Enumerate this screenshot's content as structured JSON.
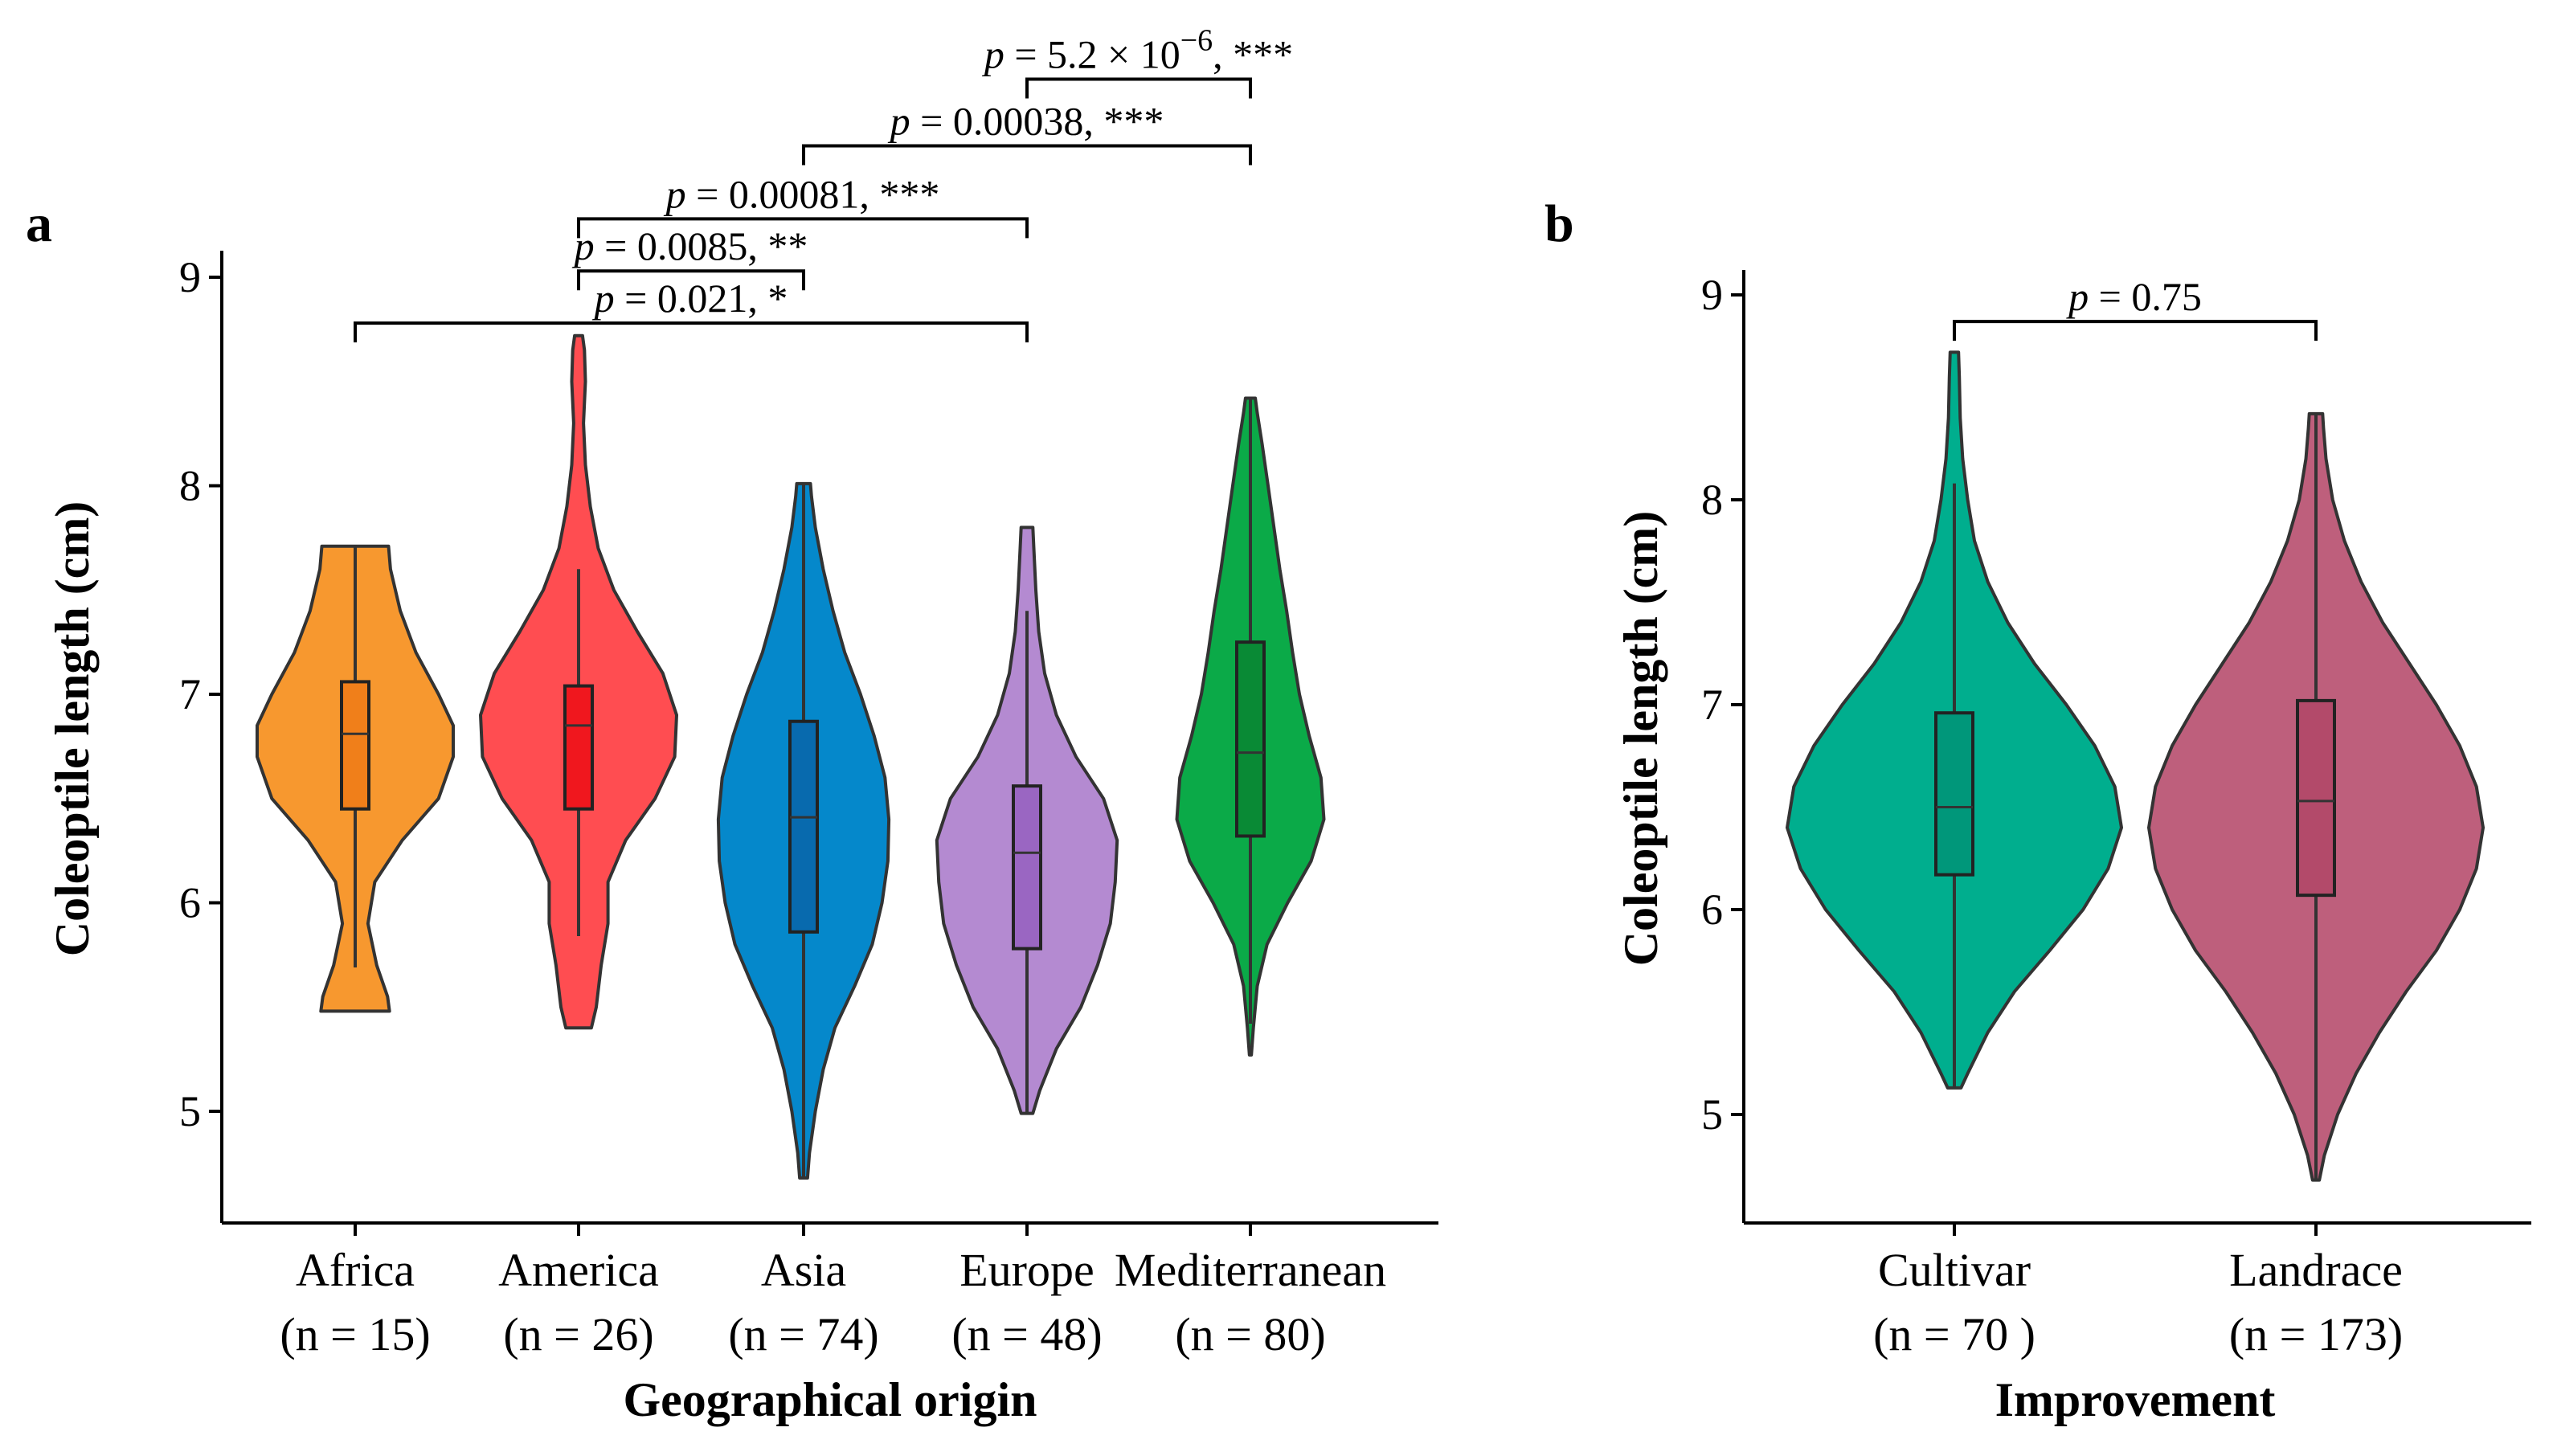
{
  "chart_data": [
    {
      "panel_label": "a",
      "type": "violin",
      "xlabel": "Geographical origin",
      "ylabel": "Coleoptile length (cm)",
      "ylim": [
        4.5,
        9.1
      ],
      "yticks": [
        5,
        6,
        7,
        8,
        9
      ],
      "groups": [
        {
          "name": "Africa",
          "n_label": "(n = 15)",
          "color": "#F7982F",
          "box_color": "#F07F1A",
          "min": 5.48,
          "max": 7.71,
          "median": 6.81,
          "q1": 6.45,
          "q3": 7.06,
          "wlow": 5.69,
          "whigh": 7.71,
          "density": [
            [
              5.48,
              0.35
            ],
            [
              5.55,
              0.33
            ],
            [
              5.7,
              0.22
            ],
            [
              5.9,
              0.13
            ],
            [
              6.1,
              0.2
            ],
            [
              6.3,
              0.48
            ],
            [
              6.5,
              0.85
            ],
            [
              6.7,
              1.0
            ],
            [
              6.85,
              1.0
            ],
            [
              7.0,
              0.85
            ],
            [
              7.2,
              0.62
            ],
            [
              7.4,
              0.46
            ],
            [
              7.6,
              0.36
            ],
            [
              7.71,
              0.34
            ]
          ]
        },
        {
          "name": "America",
          "n_label": "(n = 26)",
          "color": "#FF4D51",
          "box_color": "#F0171E",
          "min": 5.4,
          "max": 8.72,
          "median": 6.85,
          "q1": 6.45,
          "q3": 7.04,
          "wlow": 5.84,
          "whigh": 7.6,
          "density": [
            [
              5.4,
              0.13
            ],
            [
              5.5,
              0.18
            ],
            [
              5.7,
              0.23
            ],
            [
              5.9,
              0.3
            ],
            [
              6.1,
              0.3
            ],
            [
              6.3,
              0.48
            ],
            [
              6.5,
              0.78
            ],
            [
              6.7,
              0.98
            ],
            [
              6.9,
              1.0
            ],
            [
              7.1,
              0.86
            ],
            [
              7.3,
              0.6
            ],
            [
              7.5,
              0.36
            ],
            [
              7.7,
              0.2
            ],
            [
              7.9,
              0.12
            ],
            [
              8.1,
              0.07
            ],
            [
              8.3,
              0.05
            ],
            [
              8.5,
              0.07
            ],
            [
              8.65,
              0.06
            ],
            [
              8.72,
              0.04
            ]
          ]
        },
        {
          "name": "Asia",
          "n_label": "(n = 74)",
          "color": "#0588CB",
          "box_color": "#086AAE",
          "min": 4.68,
          "max": 8.01,
          "median": 6.41,
          "q1": 5.86,
          "q3": 6.87,
          "wlow": 4.68,
          "whigh": 8.01,
          "density": [
            [
              4.68,
              0.04
            ],
            [
              4.8,
              0.06
            ],
            [
              5.0,
              0.12
            ],
            [
              5.2,
              0.2
            ],
            [
              5.4,
              0.32
            ],
            [
              5.6,
              0.52
            ],
            [
              5.8,
              0.7
            ],
            [
              6.0,
              0.8
            ],
            [
              6.2,
              0.86
            ],
            [
              6.4,
              0.87
            ],
            [
              6.6,
              0.83
            ],
            [
              6.8,
              0.72
            ],
            [
              7.0,
              0.58
            ],
            [
              7.2,
              0.42
            ],
            [
              7.4,
              0.3
            ],
            [
              7.6,
              0.2
            ],
            [
              7.8,
              0.12
            ],
            [
              7.95,
              0.08
            ],
            [
              8.01,
              0.07
            ]
          ]
        },
        {
          "name": "Europe",
          "n_label": "(n = 48)",
          "color": "#B48AD1",
          "box_color": "#9A66C2",
          "min": 4.99,
          "max": 7.8,
          "median": 6.24,
          "q1": 5.78,
          "q3": 6.56,
          "wlow": 4.99,
          "whigh": 7.4,
          "density": [
            [
              4.99,
              0.06
            ],
            [
              5.1,
              0.13
            ],
            [
              5.3,
              0.3
            ],
            [
              5.5,
              0.55
            ],
            [
              5.7,
              0.72
            ],
            [
              5.9,
              0.85
            ],
            [
              6.1,
              0.9
            ],
            [
              6.3,
              0.92
            ],
            [
              6.5,
              0.78
            ],
            [
              6.7,
              0.5
            ],
            [
              6.9,
              0.3
            ],
            [
              7.1,
              0.18
            ],
            [
              7.3,
              0.12
            ],
            [
              7.5,
              0.09
            ],
            [
              7.7,
              0.07
            ],
            [
              7.8,
              0.06
            ]
          ]
        },
        {
          "name": "Mediterranean",
          "n_label": "(n = 80)",
          "color": "#0BAA48",
          "box_color": "#098A35",
          "min": 5.27,
          "max": 8.42,
          "median": 6.72,
          "q1": 6.32,
          "q3": 7.25,
          "wlow": 5.42,
          "whigh": 8.42,
          "density": [
            [
              5.27,
              0.01
            ],
            [
              5.4,
              0.03
            ],
            [
              5.6,
              0.07
            ],
            [
              5.8,
              0.17
            ],
            [
              6.0,
              0.38
            ],
            [
              6.2,
              0.62
            ],
            [
              6.4,
              0.75
            ],
            [
              6.6,
              0.72
            ],
            [
              6.8,
              0.6
            ],
            [
              7.0,
              0.5
            ],
            [
              7.2,
              0.43
            ],
            [
              7.4,
              0.37
            ],
            [
              7.6,
              0.3
            ],
            [
              7.8,
              0.24
            ],
            [
              8.0,
              0.18
            ],
            [
              8.2,
              0.12
            ],
            [
              8.35,
              0.07
            ],
            [
              8.42,
              0.05
            ]
          ]
        }
      ],
      "comparisons": [
        {
          "g1": "Africa",
          "g2": "Europe",
          "y": 8.78,
          "label_prefix": "p",
          "label_rest": " = 0.021, *"
        },
        {
          "g1": "America",
          "g2": "Asia",
          "y": 9.03,
          "label_prefix": "p",
          "label_rest": " = 0.0085, **"
        },
        {
          "g1": "America",
          "g2": "Europe",
          "y": 9.28,
          "label_prefix": "p",
          "label_rest": " = 0.00081, ***"
        },
        {
          "g1": "Asia",
          "g2": "Mediterranean",
          "y": 9.63,
          "label_prefix": "p",
          "label_rest": " = 0.00038, ***"
        },
        {
          "g1": "Europe",
          "g2": "Mediterranean",
          "y": 9.95,
          "label_prefix": "p",
          "label_rest": " = 5.2 × 10",
          "label_sup": "−6",
          "label_tail": ", ***"
        }
      ]
    },
    {
      "panel_label": "b",
      "type": "violin",
      "xlabel": "Improvement",
      "ylabel": "Coleoptile length (cm)",
      "ylim": [
        4.5,
        9.1
      ],
      "yticks": [
        5,
        6,
        7,
        8,
        9
      ],
      "groups": [
        {
          "name": "Cultivar",
          "n_label": "(n = 70 )",
          "color": "#00AE8E",
          "box_color": "#00977A",
          "min": 5.13,
          "max": 8.72,
          "median": 6.5,
          "q1": 6.17,
          "q3": 6.96,
          "wlow": 5.13,
          "whigh": 8.08,
          "density": [
            [
              5.13,
              0.04
            ],
            [
              5.2,
              0.08
            ],
            [
              5.4,
              0.2
            ],
            [
              5.6,
              0.36
            ],
            [
              5.8,
              0.57
            ],
            [
              6.0,
              0.77
            ],
            [
              6.2,
              0.92
            ],
            [
              6.4,
              1.0
            ],
            [
              6.6,
              0.96
            ],
            [
              6.8,
              0.84
            ],
            [
              7.0,
              0.67
            ],
            [
              7.2,
              0.48
            ],
            [
              7.4,
              0.32
            ],
            [
              7.6,
              0.2
            ],
            [
              7.8,
              0.12
            ],
            [
              8.0,
              0.08
            ],
            [
              8.2,
              0.05
            ],
            [
              8.4,
              0.035
            ],
            [
              8.6,
              0.03
            ],
            [
              8.72,
              0.025
            ]
          ]
        },
        {
          "name": "Landrace",
          "n_label": "(n = 173)",
          "color": "#BE5F7C",
          "box_color": "#B34A6A",
          "min": 4.68,
          "max": 8.42,
          "median": 6.53,
          "q1": 6.07,
          "q3": 7.02,
          "wlow": 4.68,
          "whigh": 8.42,
          "density": [
            [
              4.68,
              0.02
            ],
            [
              4.8,
              0.05
            ],
            [
              5.0,
              0.13
            ],
            [
              5.2,
              0.24
            ],
            [
              5.4,
              0.38
            ],
            [
              5.6,
              0.54
            ],
            [
              5.8,
              0.72
            ],
            [
              6.0,
              0.86
            ],
            [
              6.2,
              0.96
            ],
            [
              6.4,
              1.0
            ],
            [
              6.6,
              0.96
            ],
            [
              6.8,
              0.86
            ],
            [
              7.0,
              0.72
            ],
            [
              7.2,
              0.56
            ],
            [
              7.4,
              0.4
            ],
            [
              7.6,
              0.27
            ],
            [
              7.8,
              0.17
            ],
            [
              8.0,
              0.1
            ],
            [
              8.2,
              0.06
            ],
            [
              8.35,
              0.045
            ],
            [
              8.42,
              0.04
            ]
          ]
        }
      ],
      "comparisons": [
        {
          "g1": "Cultivar",
          "g2": "Landrace",
          "y": 8.87,
          "label_prefix": "p",
          "label_rest": " = 0.75"
        }
      ]
    }
  ]
}
